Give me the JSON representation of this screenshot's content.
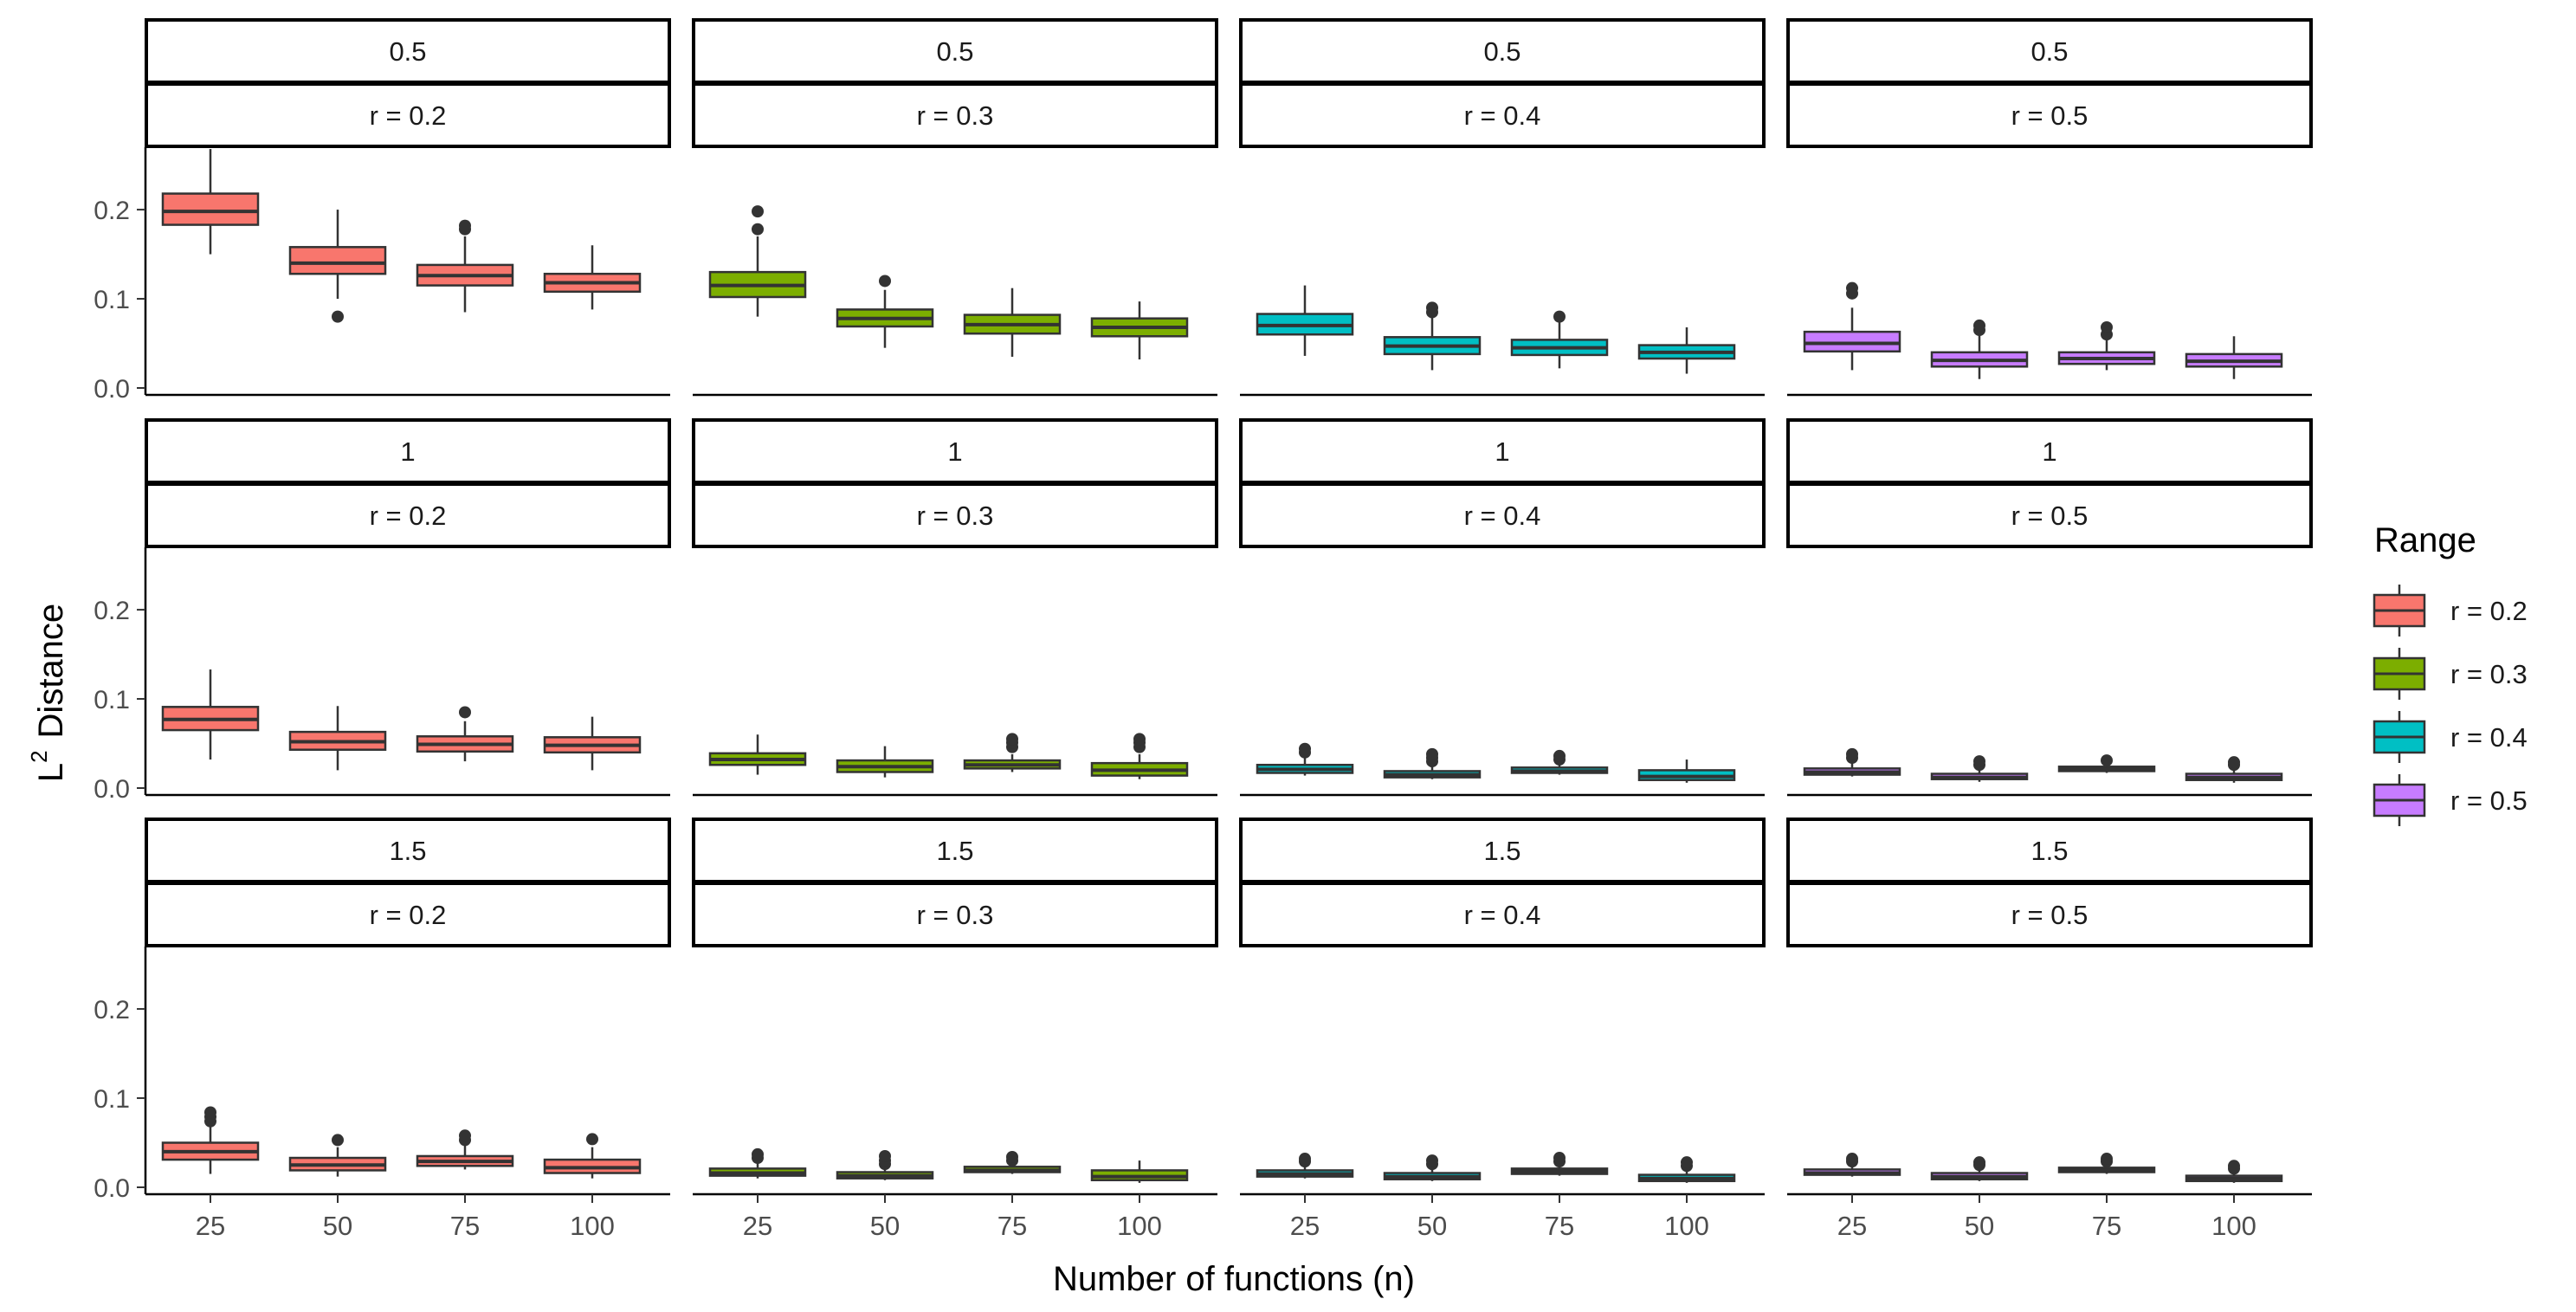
{
  "chart_data": {
    "type": "boxplot",
    "xlabel": "Number of functions (n)",
    "ylabel_base": "L",
    "ylabel_sup": "2",
    "ylabel_rest": "Distance",
    "ylim": [
      0,
      0.27
    ],
    "y_ticks": [
      0.0,
      0.1,
      0.2
    ],
    "y_tick_labels": [
      "0.0",
      "0.1",
      "0.2"
    ],
    "x_categories": [
      "25",
      "50",
      "75",
      "100"
    ],
    "row_labels": [
      "0.5",
      "1",
      "1.5"
    ],
    "col_labels": [
      "r = 0.2",
      "r = 0.3",
      "r = 0.4",
      "r = 0.5"
    ],
    "legend": {
      "title": "Range",
      "entries": [
        "r = 0.2",
        "r = 0.3",
        "r = 0.4",
        "r = 0.5"
      ]
    },
    "colors": [
      "#F8766D",
      "#7CAE00",
      "#00BFC4",
      "#C77CFF"
    ],
    "panels": [
      [
        [
          {
            "lo": 0.15,
            "q1": 0.183,
            "med": 0.198,
            "q3": 0.218,
            "hi": 0.268,
            "out": []
          },
          {
            "lo": 0.1,
            "q1": 0.128,
            "med": 0.14,
            "q3": 0.158,
            "hi": 0.2,
            "out": [
              0.08
            ]
          },
          {
            "lo": 0.085,
            "q1": 0.115,
            "med": 0.126,
            "q3": 0.138,
            "hi": 0.17,
            "out": [
              0.178,
              0.182
            ]
          },
          {
            "lo": 0.088,
            "q1": 0.108,
            "med": 0.118,
            "q3": 0.128,
            "hi": 0.16,
            "out": []
          }
        ],
        [
          {
            "lo": 0.08,
            "q1": 0.102,
            "med": 0.115,
            "q3": 0.13,
            "hi": 0.17,
            "out": [
              0.178,
              0.198
            ]
          },
          {
            "lo": 0.045,
            "q1": 0.069,
            "med": 0.078,
            "q3": 0.088,
            "hi": 0.11,
            "out": [
              0.12
            ]
          },
          {
            "lo": 0.035,
            "q1": 0.061,
            "med": 0.071,
            "q3": 0.082,
            "hi": 0.112,
            "out": []
          },
          {
            "lo": 0.032,
            "q1": 0.058,
            "med": 0.068,
            "q3": 0.078,
            "hi": 0.097,
            "out": []
          }
        ],
        [
          {
            "lo": 0.036,
            "q1": 0.06,
            "med": 0.07,
            "q3": 0.083,
            "hi": 0.115,
            "out": []
          },
          {
            "lo": 0.02,
            "q1": 0.038,
            "med": 0.047,
            "q3": 0.057,
            "hi": 0.08,
            "out": [
              0.085,
              0.09
            ]
          },
          {
            "lo": 0.022,
            "q1": 0.037,
            "med": 0.045,
            "q3": 0.054,
            "hi": 0.075,
            "out": [
              0.08
            ]
          },
          {
            "lo": 0.016,
            "q1": 0.033,
            "med": 0.04,
            "q3": 0.048,
            "hi": 0.068,
            "out": []
          }
        ],
        [
          {
            "lo": 0.02,
            "q1": 0.041,
            "med": 0.05,
            "q3": 0.063,
            "hi": 0.09,
            "out": [
              0.106,
              0.112
            ]
          },
          {
            "lo": 0.01,
            "q1": 0.024,
            "med": 0.031,
            "q3": 0.04,
            "hi": 0.06,
            "out": [
              0.065,
              0.07
            ]
          },
          {
            "lo": 0.02,
            "q1": 0.027,
            "med": 0.033,
            "q3": 0.04,
            "hi": 0.055,
            "out": [
              0.06,
              0.068
            ]
          },
          {
            "lo": 0.01,
            "q1": 0.024,
            "med": 0.03,
            "q3": 0.038,
            "hi": 0.058,
            "out": []
          }
        ]
      ],
      [
        [
          {
            "lo": 0.032,
            "q1": 0.065,
            "med": 0.077,
            "q3": 0.091,
            "hi": 0.133,
            "out": []
          },
          {
            "lo": 0.02,
            "q1": 0.043,
            "med": 0.052,
            "q3": 0.063,
            "hi": 0.092,
            "out": []
          },
          {
            "lo": 0.03,
            "q1": 0.041,
            "med": 0.049,
            "q3": 0.058,
            "hi": 0.075,
            "out": [
              0.085
            ]
          },
          {
            "lo": 0.02,
            "q1": 0.04,
            "med": 0.048,
            "q3": 0.057,
            "hi": 0.08,
            "out": []
          }
        ],
        [
          {
            "lo": 0.015,
            "q1": 0.026,
            "med": 0.032,
            "q3": 0.039,
            "hi": 0.06,
            "out": []
          },
          {
            "lo": 0.012,
            "q1": 0.018,
            "med": 0.024,
            "q3": 0.031,
            "hi": 0.047,
            "out": []
          },
          {
            "lo": 0.018,
            "q1": 0.022,
            "med": 0.026,
            "q3": 0.031,
            "hi": 0.038,
            "out": [
              0.046,
              0.051,
              0.055
            ]
          },
          {
            "lo": 0.01,
            "q1": 0.014,
            "med": 0.02,
            "q3": 0.028,
            "hi": 0.038,
            "out": [
              0.046,
              0.051,
              0.055
            ]
          }
        ],
        [
          {
            "lo": 0.014,
            "q1": 0.017,
            "med": 0.021,
            "q3": 0.026,
            "hi": 0.034,
            "out": [
              0.04,
              0.044
            ]
          },
          {
            "lo": 0.01,
            "q1": 0.012,
            "med": 0.015,
            "q3": 0.019,
            "hi": 0.026,
            "out": [
              0.03,
              0.034,
              0.038
            ]
          },
          {
            "lo": 0.015,
            "q1": 0.017,
            "med": 0.019,
            "q3": 0.023,
            "hi": 0.028,
            "out": [
              0.032,
              0.036
            ]
          },
          {
            "lo": 0.006,
            "q1": 0.009,
            "med": 0.013,
            "q3": 0.02,
            "hi": 0.032,
            "out": []
          }
        ],
        [
          {
            "lo": 0.013,
            "q1": 0.015,
            "med": 0.018,
            "q3": 0.022,
            "hi": 0.029,
            "out": [
              0.034,
              0.038
            ]
          },
          {
            "lo": 0.007,
            "q1": 0.01,
            "med": 0.012,
            "q3": 0.016,
            "hi": 0.022,
            "out": [
              0.026,
              0.03
            ]
          },
          {
            "lo": 0.017,
            "q1": 0.019,
            "med": 0.021,
            "q3": 0.024,
            "hi": 0.027,
            "out": [
              0.031
            ]
          },
          {
            "lo": 0.006,
            "q1": 0.009,
            "med": 0.012,
            "q3": 0.016,
            "hi": 0.022,
            "out": [
              0.026,
              0.029
            ]
          }
        ]
      ],
      [
        [
          {
            "lo": 0.015,
            "q1": 0.031,
            "med": 0.04,
            "q3": 0.05,
            "hi": 0.068,
            "out": [
              0.074,
              0.079,
              0.084
            ]
          },
          {
            "lo": 0.012,
            "q1": 0.019,
            "med": 0.025,
            "q3": 0.033,
            "hi": 0.045,
            "out": [
              0.053
            ]
          },
          {
            "lo": 0.02,
            "q1": 0.024,
            "med": 0.029,
            "q3": 0.035,
            "hi": 0.048,
            "out": [
              0.053,
              0.058
            ]
          },
          {
            "lo": 0.01,
            "q1": 0.016,
            "med": 0.022,
            "q3": 0.031,
            "hi": 0.045,
            "out": [
              0.054
            ]
          }
        ],
        [
          {
            "lo": 0.01,
            "q1": 0.013,
            "med": 0.016,
            "q3": 0.021,
            "hi": 0.028,
            "out": [
              0.033,
              0.037
            ]
          },
          {
            "lo": 0.008,
            "q1": 0.01,
            "med": 0.013,
            "q3": 0.017,
            "hi": 0.022,
            "out": [
              0.026,
              0.03,
              0.035
            ]
          },
          {
            "lo": 0.015,
            "q1": 0.017,
            "med": 0.019,
            "q3": 0.023,
            "hi": 0.027,
            "out": [
              0.03,
              0.034
            ]
          },
          {
            "lo": 0.005,
            "q1": 0.008,
            "med": 0.012,
            "q3": 0.019,
            "hi": 0.03,
            "out": []
          }
        ],
        [
          {
            "lo": 0.01,
            "q1": 0.012,
            "med": 0.015,
            "q3": 0.019,
            "hi": 0.025,
            "out": [
              0.029,
              0.032
            ]
          },
          {
            "lo": 0.007,
            "q1": 0.009,
            "med": 0.012,
            "q3": 0.016,
            "hi": 0.022,
            "out": [
              0.026,
              0.03
            ]
          },
          {
            "lo": 0.013,
            "q1": 0.015,
            "med": 0.018,
            "q3": 0.021,
            "hi": 0.026,
            "out": [
              0.029,
              0.033
            ]
          },
          {
            "lo": 0.005,
            "q1": 0.007,
            "med": 0.01,
            "q3": 0.014,
            "hi": 0.02,
            "out": [
              0.024,
              0.028
            ]
          }
        ],
        [
          {
            "lo": 0.012,
            "q1": 0.014,
            "med": 0.016,
            "q3": 0.02,
            "hi": 0.025,
            "out": [
              0.029,
              0.032
            ]
          },
          {
            "lo": 0.007,
            "q1": 0.009,
            "med": 0.012,
            "q3": 0.016,
            "hi": 0.021,
            "out": [
              0.025,
              0.028
            ]
          },
          {
            "lo": 0.015,
            "q1": 0.017,
            "med": 0.019,
            "q3": 0.022,
            "hi": 0.026,
            "out": [
              0.029,
              0.032
            ]
          },
          {
            "lo": 0.005,
            "q1": 0.007,
            "med": 0.01,
            "q3": 0.013,
            "hi": 0.018,
            "out": [
              0.021,
              0.024
            ]
          }
        ]
      ]
    ]
  }
}
